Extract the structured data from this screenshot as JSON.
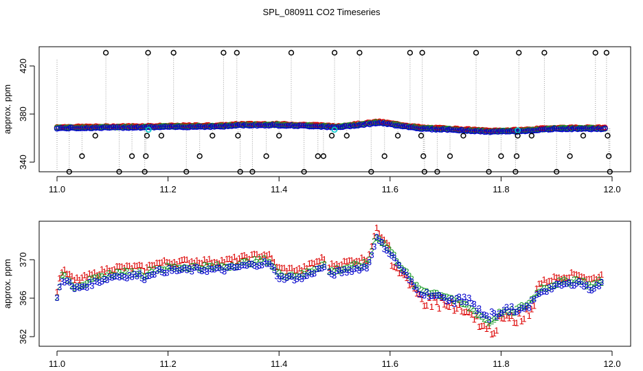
{
  "figure": {
    "title": "SPL_080911  CO2 Timeseries"
  },
  "chart_data": [
    {
      "type": "scatter",
      "panel": "top",
      "ylabel": "approx. ppm",
      "xlabel": "",
      "xlim": [
        11.0,
        12.0
      ],
      "ylim": [
        332,
        436
      ],
      "xticks": [
        11.0,
        11.2,
        11.4,
        11.6,
        11.8,
        12.0
      ],
      "xtick_labels": [
        "11.0",
        "11.2",
        "11.4",
        "11.6",
        "11.8",
        "12.0"
      ],
      "yticks": [
        340,
        380,
        420
      ],
      "ytick_labels": [
        "340",
        "380",
        "420"
      ],
      "baseline_points": [
        [
          11.0,
          368.5
        ],
        [
          11.1,
          369.0
        ],
        [
          11.2,
          369.5
        ],
        [
          11.3,
          370.0
        ],
        [
          11.33,
          371.0
        ],
        [
          11.4,
          371.0
        ],
        [
          11.48,
          370.0
        ],
        [
          11.5,
          369.0
        ],
        [
          11.56,
          372.0
        ],
        [
          11.58,
          373.0
        ],
        [
          11.66,
          368.0
        ],
        [
          11.7,
          367.5
        ],
        [
          11.78,
          365.5
        ],
        [
          11.83,
          366.0
        ],
        [
          11.9,
          368.0
        ],
        [
          11.99,
          368.0
        ]
      ],
      "outliers": [
        [
          11.022,
          332
        ],
        [
          11.045,
          345
        ],
        [
          11.069,
          362
        ],
        [
          11.088,
          431
        ],
        [
          11.112,
          332
        ],
        [
          11.135,
          345
        ],
        [
          11.158,
          332
        ],
        [
          11.16,
          345
        ],
        [
          11.162,
          362
        ],
        [
          11.164,
          431
        ],
        [
          11.188,
          362
        ],
        [
          11.21,
          431
        ],
        [
          11.233,
          332
        ],
        [
          11.257,
          345
        ],
        [
          11.28,
          362
        ],
        [
          11.3,
          431
        ],
        [
          11.324,
          431
        ],
        [
          11.326,
          362
        ],
        [
          11.33,
          332
        ],
        [
          11.352,
          332
        ],
        [
          11.377,
          345
        ],
        [
          11.4,
          362
        ],
        [
          11.422,
          431
        ],
        [
          11.445,
          332
        ],
        [
          11.47,
          345
        ],
        [
          11.48,
          345
        ],
        [
          11.495,
          362
        ],
        [
          11.5,
          431
        ],
        [
          11.522,
          362
        ],
        [
          11.545,
          431
        ],
        [
          11.566,
          332
        ],
        [
          11.59,
          345
        ],
        [
          11.614,
          362
        ],
        [
          11.636,
          431
        ],
        [
          11.656,
          362
        ],
        [
          11.658,
          431
        ],
        [
          11.66,
          345
        ],
        [
          11.662,
          332
        ],
        [
          11.685,
          332
        ],
        [
          11.708,
          345
        ],
        [
          11.732,
          362
        ],
        [
          11.755,
          431
        ],
        [
          11.778,
          332
        ],
        [
          11.8,
          345
        ],
        [
          11.826,
          332
        ],
        [
          11.828,
          345
        ],
        [
          11.83,
          362
        ],
        [
          11.832,
          431
        ],
        [
          11.855,
          362
        ],
        [
          11.878,
          431
        ],
        [
          11.9,
          332
        ],
        [
          11.924,
          345
        ],
        [
          11.948,
          362
        ],
        [
          11.97,
          431
        ],
        [
          11.99,
          431
        ],
        [
          11.992,
          362
        ],
        [
          11.994,
          345
        ],
        [
          11.996,
          332
        ]
      ],
      "cyan_markers": [
        [
          11.165,
          367.0
        ],
        [
          11.5,
          367.0
        ],
        [
          11.83,
          366.5
        ]
      ],
      "series_colors": {
        "outlier": "#000000",
        "dense_blue": "#0000cc",
        "dense_green": "#1a9a2a",
        "dense_red": "#dd0000",
        "cyan": "#00cccc",
        "drop_lines": "#999999"
      }
    },
    {
      "type": "scatter",
      "panel": "bottom",
      "ylabel": "approx. ppm",
      "xlabel": "",
      "xlim": [
        11.0,
        12.0
      ],
      "ylim": [
        361.0,
        374.0
      ],
      "xticks": [
        11.0,
        11.2,
        11.4,
        11.6,
        11.8,
        12.0
      ],
      "xtick_labels": [
        "11.0",
        "11.2",
        "11.4",
        "11.6",
        "11.8",
        "12.0"
      ],
      "yticks": [
        362,
        366,
        370
      ],
      "ytick_labels": [
        "362",
        "366",
        "370"
      ],
      "series_shape": [
        [
          11.0,
          366.3
        ],
        [
          11.008,
          368.3
        ],
        [
          11.02,
          368.0
        ],
        [
          11.03,
          367.3
        ],
        [
          11.05,
          367.6
        ],
        [
          11.08,
          368.2
        ],
        [
          11.1,
          368.6
        ],
        [
          11.15,
          368.7
        ],
        [
          11.16,
          368.4
        ],
        [
          11.17,
          369.0
        ],
        [
          11.2,
          369.2
        ],
        [
          11.25,
          369.3
        ],
        [
          11.3,
          369.3
        ],
        [
          11.35,
          369.8
        ],
        [
          11.38,
          370.0
        ],
        [
          11.4,
          368.5
        ],
        [
          11.44,
          368.4
        ],
        [
          11.48,
          369.6
        ],
        [
          11.49,
          368.8
        ],
        [
          11.53,
          369.3
        ],
        [
          11.56,
          369.6
        ],
        [
          11.575,
          372.6
        ],
        [
          11.6,
          371.0
        ],
        [
          11.63,
          368.6
        ],
        [
          11.65,
          367.0
        ],
        [
          11.7,
          366.3
        ],
        [
          11.74,
          365.2
        ],
        [
          11.78,
          363.5
        ],
        [
          11.8,
          364.6
        ],
        [
          11.82,
          364.6
        ],
        [
          11.85,
          365.5
        ],
        [
          11.87,
          367.0
        ],
        [
          11.9,
          367.6
        ],
        [
          11.94,
          368.0
        ],
        [
          11.96,
          367.3
        ],
        [
          11.98,
          367.8
        ]
      ],
      "series": [
        {
          "name": "1",
          "color": "#dd0000",
          "offset": 0.6,
          "marker": "1"
        },
        {
          "name": "2",
          "color": "#1a9a2a",
          "offset": 0.0,
          "marker": "2"
        },
        {
          "name": "3",
          "color": "#0000cc",
          "offset": -0.3,
          "marker": "3"
        }
      ]
    }
  ]
}
